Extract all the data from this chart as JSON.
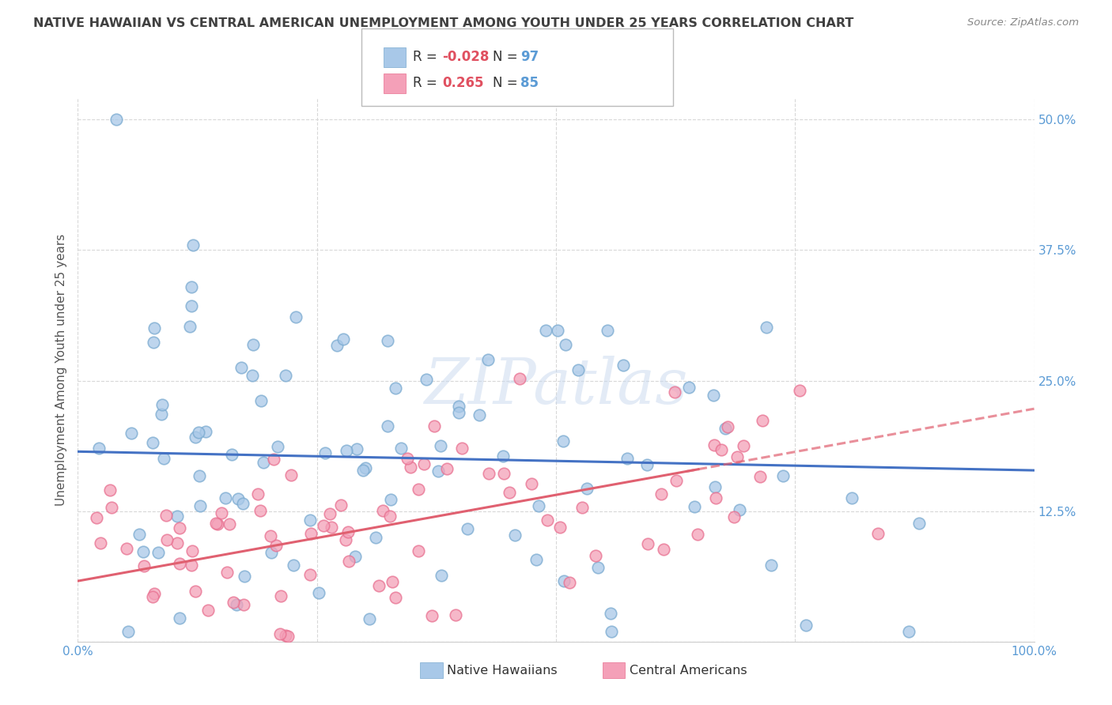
{
  "title": "NATIVE HAWAIIAN VS CENTRAL AMERICAN UNEMPLOYMENT AMONG YOUTH UNDER 25 YEARS CORRELATION CHART",
  "source": "Source: ZipAtlas.com",
  "ylabel": "Unemployment Among Youth under 25 years",
  "xlim": [
    0,
    1.0
  ],
  "ylim": [
    0,
    0.52
  ],
  "xticks": [
    0.0,
    0.25,
    0.5,
    0.75,
    1.0
  ],
  "xticklabels": [
    "0.0%",
    "",
    "",
    "",
    "100.0%"
  ],
  "yticks": [
    0.0,
    0.125,
    0.25,
    0.375,
    0.5
  ],
  "yticklabels_right": [
    "",
    "12.5%",
    "25.0%",
    "37.5%",
    "50.0%"
  ],
  "series1_color": "#a8c8e8",
  "series2_color": "#f4a0b8",
  "series1_edge": "#7aaad0",
  "series2_edge": "#e87090",
  "trend1_color": "#4472c4",
  "trend2_color": "#e06070",
  "legend_R1": "-0.028",
  "legend_N1": "97",
  "legend_R2": "0.265",
  "legend_N2": "85",
  "legend_label1": "Native Hawaiians",
  "legend_label2": "Central Americans",
  "watermark": "ZIPatlas",
  "background_color": "#ffffff",
  "grid_color": "#d8d8d8",
  "title_color": "#404040",
  "axis_label_color": "#5b9bd5",
  "text_color": "#333333",
  "R_color": "#e05060",
  "N_color": "#5b9bd5",
  "trend1_intercept": 0.182,
  "trend1_slope": -0.018,
  "trend2_intercept": 0.058,
  "trend2_slope": 0.165,
  "trend2_dash_start": 0.65
}
